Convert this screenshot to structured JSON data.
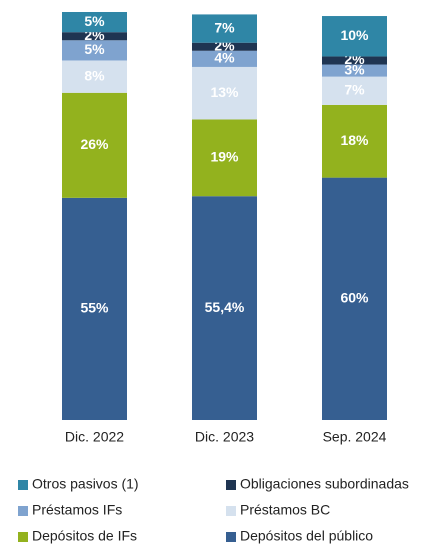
{
  "chart_data": {
    "type": "stacked_bar",
    "categories": [
      "Dic. 2022",
      "Dic. 2023",
      "Sep. 2024"
    ],
    "series": [
      {
        "name": "Otros pasivos (1)",
        "color": "#2f86a6",
        "values": [
          5,
          7,
          10
        ],
        "value_labels": [
          "5%",
          "7%",
          "10%"
        ]
      },
      {
        "name": "Obligaciones subordinadas",
        "color": "#1f3552",
        "values": [
          2,
          2,
          2
        ],
        "value_labels": [
          "2%",
          "2%",
          "2%"
        ]
      },
      {
        "name": "Préstamos IFs",
        "color": "#7fa3cf",
        "values": [
          5,
          4,
          3
        ],
        "value_labels": [
          "5%",
          "4%",
          "3%"
        ]
      },
      {
        "name": "Préstamos BC",
        "color": "#d5e1ee",
        "values": [
          8,
          13,
          7
        ],
        "value_labels": [
          "8%",
          "13%",
          "7%"
        ]
      },
      {
        "name": "Depósitos de IFs",
        "color": "#93b21e",
        "values": [
          26,
          19,
          18
        ],
        "value_labels": [
          "26%",
          "19%",
          "18%"
        ]
      },
      {
        "name": "Depósitos del público",
        "color": "#365f91",
        "values": [
          55,
          55.4,
          60
        ],
        "value_labels": [
          "55%",
          "55,4%",
          "60%"
        ]
      }
    ]
  }
}
